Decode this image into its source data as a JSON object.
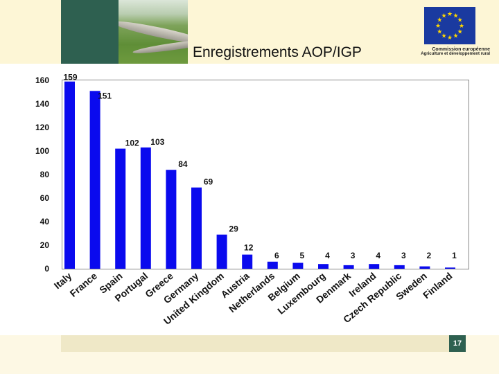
{
  "header": {
    "title": "Enregistrements AOP/IGP",
    "commission_line1": "Commission européenne",
    "commission_line2": "Agriculture et développement rural"
  },
  "footer": {
    "page_number": "17"
  },
  "colors": {
    "bar": "#0a0aee",
    "header_green": "#2e6050",
    "eu_blue": "#1a3aa0",
    "eu_star": "#ffd700"
  },
  "chart_data": {
    "type": "bar",
    "categories": [
      "Italy",
      "France",
      "Spain",
      "Portugal",
      "Greece",
      "Germany",
      "United Kingdom",
      "Austria",
      "Netherlands",
      "Belgium",
      "Luxembourg",
      "Denmark",
      "Ireland",
      "Czech Republic",
      "Sweden",
      "Finland"
    ],
    "values": [
      159,
      151,
      102,
      103,
      84,
      69,
      29,
      12,
      6,
      5,
      4,
      3,
      4,
      3,
      2,
      1
    ],
    "title": "",
    "xlabel": "",
    "ylabel": "",
    "ylim": [
      0,
      160
    ],
    "yticks": [
      0,
      20,
      40,
      60,
      80,
      100,
      120,
      140,
      160
    ],
    "grid": false,
    "data_labels": true
  }
}
